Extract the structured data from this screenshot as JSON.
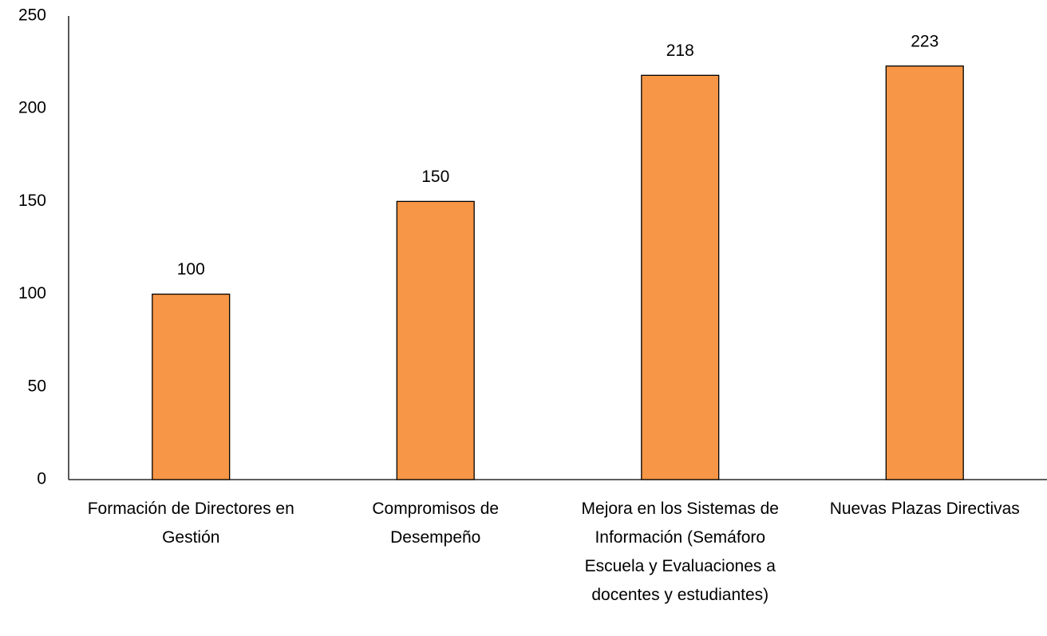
{
  "chart_data": {
    "type": "bar",
    "categories": [
      "Formación de Directores en Gestión",
      "Compromisos de Desempeño",
      "Mejora en los Sistemas de Información (Semáforo Escuela y Evaluaciones a docentes y estudiantes)",
      "Nuevas Plazas Directivas"
    ],
    "values": [
      100,
      150,
      218,
      223
    ],
    "color": "#f79646",
    "ylim": [
      0,
      250
    ],
    "yticks": [
      0,
      50,
      100,
      150,
      200,
      250
    ],
    "grid": false
  }
}
